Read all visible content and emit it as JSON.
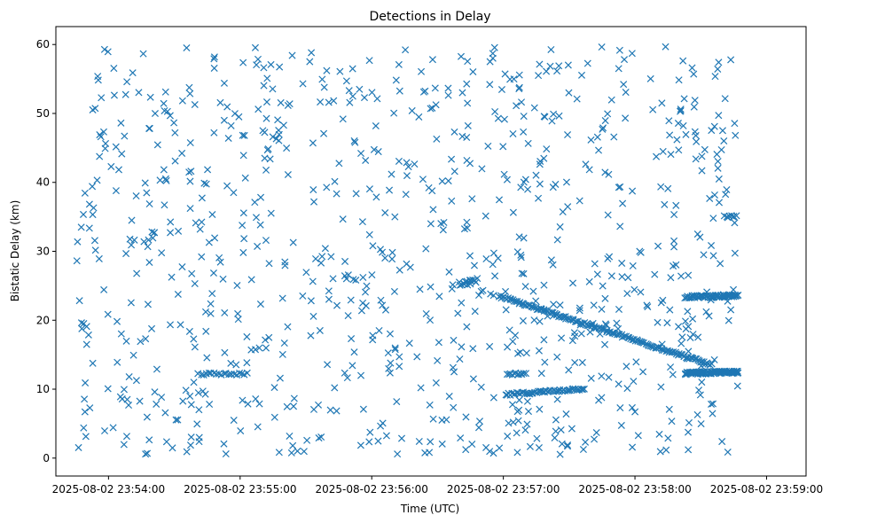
{
  "chart_data": {
    "type": "scatter",
    "title": "Detections in Delay",
    "xlabel": "Time (UTC)",
    "ylabel": "Bistatic Delay (km)",
    "x_start": "2025-08-02 23:53:45",
    "xlim_seconds": [
      -9,
      333
    ],
    "ylim": [
      -2.6,
      62.6
    ],
    "xticks": [
      {
        "label": "2025-08-02 23:54:00",
        "seconds": 15
      },
      {
        "label": "2025-08-02 23:55:00",
        "seconds": 75
      },
      {
        "label": "2025-08-02 23:56:00",
        "seconds": 135
      },
      {
        "label": "2025-08-02 23:57:00",
        "seconds": 195
      },
      {
        "label": "2025-08-02 23:58:00",
        "seconds": 255
      },
      {
        "label": "2025-08-02 23:59:00",
        "seconds": 315
      }
    ],
    "yticks": [
      0,
      10,
      20,
      30,
      40,
      50,
      60
    ],
    "marker": "x",
    "color": "#1f77b4",
    "grid": false,
    "clutter_range_seconds": [
      0,
      302
    ],
    "clutter_range_km": [
      0.5,
      59.8
    ],
    "clutter_count": 900,
    "structures": [
      {
        "x_seconds": [
          193,
          290
        ],
        "y_km": [
          23.5,
          13.5
        ],
        "count": 140
      },
      {
        "x_seconds": [
          278,
          302
        ],
        "y_km": [
          12.3,
          12.5
        ],
        "count": 90
      },
      {
        "x_seconds": [
          278,
          302
        ],
        "y_km": [
          23.4,
          23.5
        ],
        "count": 70
      },
      {
        "x_seconds": [
          196,
          232
        ],
        "y_km": [
          9.2,
          10.1
        ],
        "count": 50
      },
      {
        "x_seconds": [
          56,
          78
        ],
        "y_km": [
          12.2,
          12.2
        ],
        "count": 20
      },
      {
        "x_seconds": [
          197,
          205
        ],
        "y_km": [
          12.2,
          12.2
        ],
        "count": 12
      },
      {
        "x_seconds": [
          296,
          301
        ],
        "y_km": [
          35.0,
          35.0
        ],
        "count": 8
      },
      {
        "x_seconds": [
          175,
          183
        ],
        "y_km": [
          25.2,
          26.0
        ],
        "count": 10
      }
    ]
  }
}
